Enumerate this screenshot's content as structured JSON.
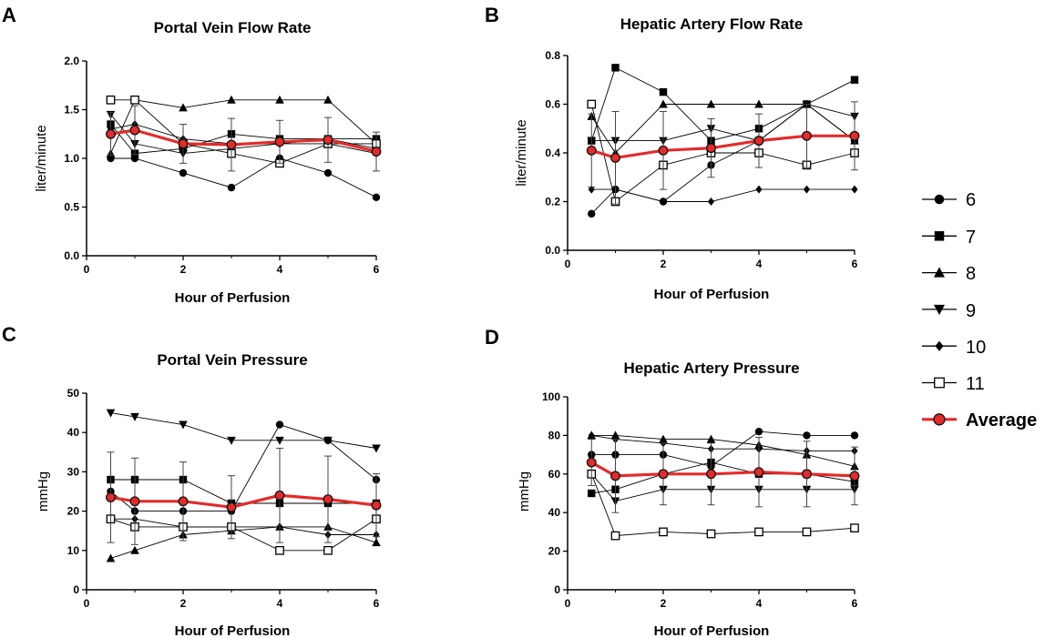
{
  "chart_data": [
    {
      "panel": "A",
      "type": "line",
      "title": "Portal Vein Flow Rate",
      "xlabel": "Hour of Perfusion",
      "ylabel": "liter/minute",
      "xlim": [
        0,
        6
      ],
      "ylim": [
        0,
        2
      ],
      "xticks": [
        "0",
        "2",
        "4",
        "6"
      ],
      "yticks": [
        "0.0",
        "0.5",
        "1.0",
        "1.5",
        "2.0"
      ],
      "x": [
        0.5,
        1,
        2,
        3,
        4,
        5,
        6
      ],
      "series": [
        {
          "name": "6",
          "values": [
            1.0,
            1.0,
            0.85,
            0.7,
            1.0,
            0.85,
            0.6
          ]
        },
        {
          "name": "7",
          "values": [
            1.35,
            1.05,
            1.1,
            1.25,
            1.2,
            1.2,
            1.2
          ]
        },
        {
          "name": "8",
          "values": [
            1.05,
            1.6,
            1.52,
            1.6,
            1.6,
            1.6,
            1.15
          ]
        },
        {
          "name": "9",
          "values": [
            1.45,
            1.15,
            1.05,
            1.1,
            1.15,
            1.15,
            1.05
          ]
        },
        {
          "name": "10",
          "values": [
            1.3,
            1.35,
            1.2,
            1.15,
            1.15,
            1.2,
            1.1
          ]
        },
        {
          "name": "11",
          "values": [
            1.6,
            1.6,
            1.15,
            1.05,
            0.95,
            1.15,
            1.15
          ]
        },
        {
          "name": "Average",
          "values": [
            1.25,
            1.29,
            1.15,
            1.14,
            1.17,
            1.19,
            1.07
          ],
          "error": [
            0.22,
            0.25,
            0.2,
            0.27,
            0.22,
            0.23,
            0.2
          ]
        }
      ]
    },
    {
      "panel": "B",
      "type": "line",
      "title": "Hepatic Artery Flow Rate",
      "xlabel": "Hour of Perfusion",
      "ylabel": "liter/minute",
      "xlim": [
        0,
        6
      ],
      "ylim": [
        0,
        0.8
      ],
      "xticks": [
        "0",
        "2",
        "4",
        "6"
      ],
      "yticks": [
        "0.0",
        "0.2",
        "0.4",
        "0.6",
        "0.8"
      ],
      "x": [
        0.5,
        1,
        2,
        3,
        4,
        5,
        6
      ],
      "series": [
        {
          "name": "6",
          "values": [
            0.15,
            0.25,
            0.2,
            0.35,
            0.45,
            0.6,
            0.45
          ]
        },
        {
          "name": "7",
          "values": [
            0.45,
            0.75,
            0.65,
            0.45,
            0.5,
            0.6,
            0.7
          ]
        },
        {
          "name": "8",
          "values": [
            0.55,
            0.4,
            0.6,
            0.6,
            0.6,
            0.6,
            0.45
          ]
        },
        {
          "name": "9",
          "values": [
            0.45,
            0.45,
            0.45,
            0.5,
            0.45,
            0.6,
            0.55
          ]
        },
        {
          "name": "10",
          "values": [
            0.25,
            0.25,
            0.2,
            0.2,
            0.25,
            0.25,
            0.25
          ]
        },
        {
          "name": "11",
          "values": [
            0.6,
            0.2,
            0.35,
            0.4,
            0.4,
            0.35,
            0.4
          ]
        },
        {
          "name": "Average",
          "values": [
            0.41,
            0.38,
            0.41,
            0.42,
            0.45,
            0.47,
            0.47
          ],
          "error": [
            0.15,
            0.19,
            0.16,
            0.12,
            0.11,
            0.13,
            0.14
          ]
        }
      ]
    },
    {
      "panel": "C",
      "type": "line",
      "title": "Portal Vein Pressure",
      "xlabel": "Hour of Perfusion",
      "ylabel": "mmHg",
      "xlim": [
        0,
        6
      ],
      "ylim": [
        0,
        50
      ],
      "xticks": [
        "0",
        "2",
        "4",
        "6"
      ],
      "yticks": [
        "0",
        "10",
        "20",
        "30",
        "40",
        "50"
      ],
      "x": [
        0.5,
        1,
        2,
        3,
        4,
        5,
        6
      ],
      "series": [
        {
          "name": "6",
          "values": [
            25,
            20,
            20,
            20,
            42,
            38,
            28
          ]
        },
        {
          "name": "7",
          "values": [
            28,
            28,
            28,
            22,
            22,
            22,
            22
          ]
        },
        {
          "name": "8",
          "values": [
            8,
            10,
            14,
            15,
            16,
            16,
            12
          ]
        },
        {
          "name": "9",
          "values": [
            45,
            44,
            42,
            38,
            38,
            38,
            36
          ]
        },
        {
          "name": "10",
          "values": [
            18,
            18,
            16,
            16,
            16,
            14,
            14
          ]
        },
        {
          "name": "11",
          "values": [
            18,
            16,
            16,
            16,
            10,
            10,
            18
          ]
        },
        {
          "name": "Average",
          "values": [
            23.5,
            22.5,
            22.5,
            21,
            24,
            23,
            21.5
          ],
          "error": [
            11.5,
            11,
            10,
            8,
            12,
            11,
            8
          ]
        }
      ]
    },
    {
      "panel": "D",
      "type": "line",
      "title": "Hepatic Artery Pressure",
      "xlabel": "Hour of Perfusion",
      "ylabel": "mmHg",
      "xlim": [
        0,
        6
      ],
      "ylim": [
        0,
        100
      ],
      "xticks": [
        "0",
        "2",
        "4",
        "6"
      ],
      "yticks": [
        "0",
        "20",
        "40",
        "60",
        "80",
        "100"
      ],
      "x": [
        0.5,
        1,
        2,
        3,
        4,
        5,
        6
      ],
      "series": [
        {
          "name": "6",
          "values": [
            70,
            70,
            70,
            64,
            82,
            80,
            80
          ]
        },
        {
          "name": "7",
          "values": [
            50,
            52,
            60,
            66,
            60,
            60,
            56
          ]
        },
        {
          "name": "8",
          "values": [
            80,
            80,
            78,
            78,
            75,
            70,
            64
          ]
        },
        {
          "name": "9",
          "values": [
            60,
            46,
            52,
            52,
            52,
            52,
            52
          ]
        },
        {
          "name": "10",
          "values": [
            80,
            78,
            76,
            73,
            73,
            72,
            72
          ]
        },
        {
          "name": "11",
          "values": [
            60,
            28,
            30,
            29,
            30,
            30,
            32
          ]
        },
        {
          "name": "Average",
          "values": [
            66,
            59,
            60,
            60,
            61,
            60,
            59
          ],
          "error": [
            12,
            19,
            16,
            16,
            18,
            17,
            15
          ]
        }
      ]
    }
  ],
  "legend": {
    "items": [
      {
        "name": "6",
        "marker": "circle"
      },
      {
        "name": "7",
        "marker": "square"
      },
      {
        "name": "8",
        "marker": "triangle-up"
      },
      {
        "name": "9",
        "marker": "triangle-down"
      },
      {
        "name": "10",
        "marker": "diamond"
      },
      {
        "name": "11",
        "marker": "open-square"
      },
      {
        "name": "Average",
        "marker": "red-circle"
      }
    ]
  },
  "colors": {
    "series": "#000000",
    "average": "#e32b2b",
    "axis": "#000000"
  }
}
